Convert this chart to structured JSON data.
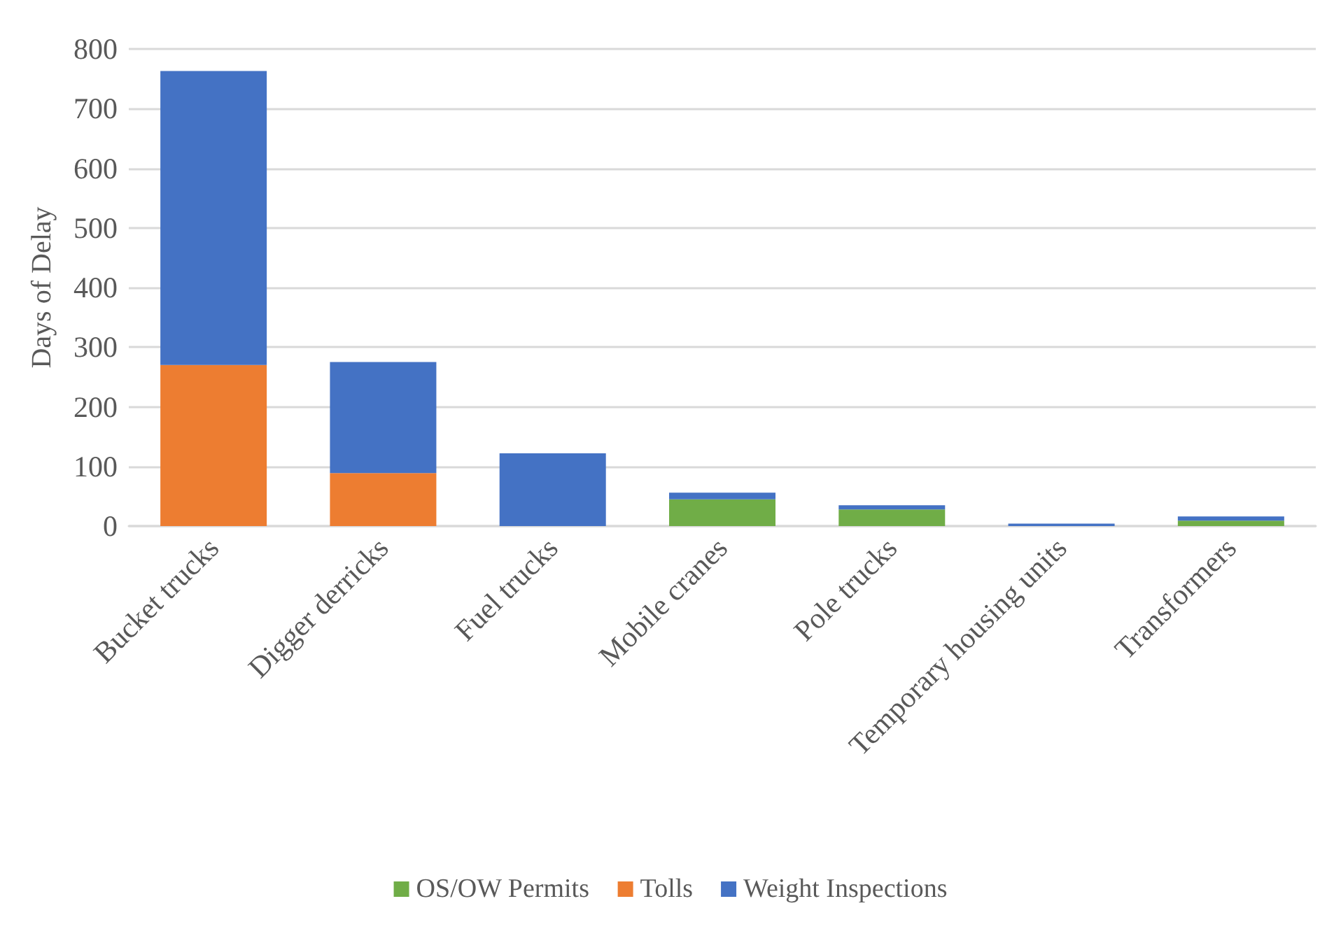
{
  "chart_data": {
    "type": "bar",
    "stacked": true,
    "ylabel": "Days of Delay",
    "categories": [
      "Bucket trucks",
      "Digger derricks",
      "Fuel trucks",
      "Mobile cranes",
      "Pole trucks",
      "Temporary housing units",
      "Transformers"
    ],
    "series": [
      {
        "name": "OS/OW Permits",
        "color": "#70ad47",
        "values": [
          0,
          0,
          0,
          45,
          28,
          0,
          9
        ]
      },
      {
        "name": "Tolls",
        "color": "#ed7d31",
        "values": [
          270,
          89,
          0,
          0,
          0,
          0,
          0
        ]
      },
      {
        "name": "Weight Inspections",
        "color": "#4472c4",
        "values": [
          493,
          186,
          122,
          11,
          7,
          4,
          7
        ]
      }
    ],
    "ylim": [
      0,
      800
    ],
    "yticks": [
      0,
      100,
      200,
      300,
      400,
      500,
      600,
      700,
      800
    ],
    "grid": "y",
    "legend": "bottom"
  }
}
